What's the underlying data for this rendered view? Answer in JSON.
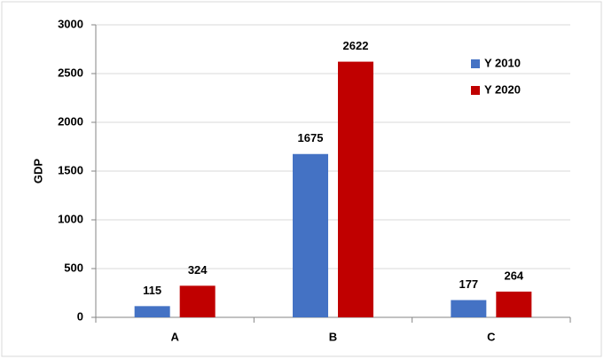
{
  "chart_data": {
    "type": "bar",
    "y_label": "GDP",
    "categories": [
      "A",
      "B",
      "C"
    ],
    "series": [
      {
        "name": "Y 2010",
        "color": "#4472c4",
        "values": [
          115,
          1675,
          177
        ]
      },
      {
        "name": "Y 2020",
        "color": "#c00000",
        "values": [
          324,
          2622,
          264
        ]
      }
    ],
    "ylim": [
      0,
      3000
    ],
    "yticks": [
      0,
      500,
      1000,
      1500,
      2000,
      2500,
      3000
    ],
    "grid": true,
    "legend": "upper right"
  }
}
